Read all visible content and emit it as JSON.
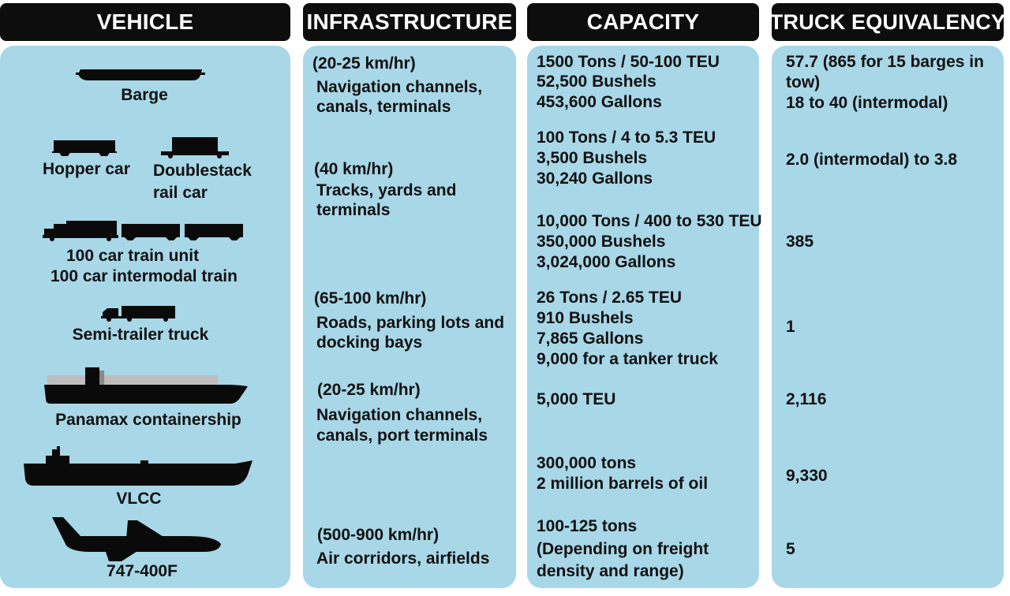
{
  "headers": {
    "vehicle": "VEHICLE",
    "infrastructure": "INFRASTRUCTURE",
    "capacity": "CAPACITY",
    "truck_equivalency": "TRUCK EQUIVALENCY"
  },
  "vehicles": {
    "barge": "Barge",
    "hopper_car": "Hopper car",
    "doublestack_1": "Doublestack",
    "doublestack_2": "rail car",
    "train_1": "100 car train unit",
    "train_2": "100 car intermodal train",
    "semi": "Semi-trailer truck",
    "panamax": "Panamax containership",
    "vlcc": "VLCC",
    "plane": "747-400F"
  },
  "infrastructure": {
    "water1": {
      "speed": "(20-25 km/hr)",
      "line1": "Navigation channels,",
      "line2": "canals, terminals"
    },
    "rail": {
      "speed": "(40 km/hr)",
      "line1": "Tracks, yards and",
      "line2": "terminals"
    },
    "road": {
      "speed": "(65-100 km/hr)",
      "line1": "Roads, parking lots and",
      "line2": "docking bays"
    },
    "water2": {
      "speed": "(20-25 km/hr)",
      "line1": "Navigation channels,",
      "line2": "canals, port terminals"
    },
    "air": {
      "speed": "(500-900 km/hr)",
      "line1": "Air corridors, airfields"
    }
  },
  "capacity": {
    "barge": [
      "1500 Tons / 50-100 TEU",
      "52,500 Bushels",
      "453,600 Gallons"
    ],
    "railcar": [
      "100 Tons / 4 to 5.3 TEU",
      "3,500 Bushels",
      "30,240 Gallons"
    ],
    "train": [
      "10,000 Tons / 400 to 530 TEU",
      "350,000 Bushels",
      "3,024,000 Gallons"
    ],
    "truck": [
      "26 Tons / 2.65 TEU",
      "910 Bushels",
      "7,865 Gallons",
      "9,000 for a tanker truck"
    ],
    "panamax": [
      "5,000 TEU"
    ],
    "vlcc": [
      "300,000 tons",
      "2 million barrels of oil"
    ],
    "plane": [
      "100-125 tons",
      "(Depending on freight",
      "density and range)"
    ]
  },
  "truck_equivalency": {
    "barge_1": "57.7 (865 for 15 barges in",
    "barge_2": "tow)",
    "barge_3": "18 to 40 (intermodal)",
    "railcar": "2.0 (intermodal) to 3.8",
    "train": "385",
    "truck": "1",
    "panamax": "2,116",
    "vlcc": "9,330",
    "plane": "5"
  },
  "colors": {
    "header_bg": "#0d0d0d",
    "panel_bg": "#a8d7e7",
    "silhouette": "#0a0a0a",
    "container_grey": "#bdbdbd"
  },
  "icons": [
    "barge-icon",
    "hopper-car-icon",
    "doublestack-car-icon",
    "train-icon",
    "semi-truck-icon",
    "containership-icon",
    "tanker-icon",
    "cargo-plane-icon"
  ]
}
